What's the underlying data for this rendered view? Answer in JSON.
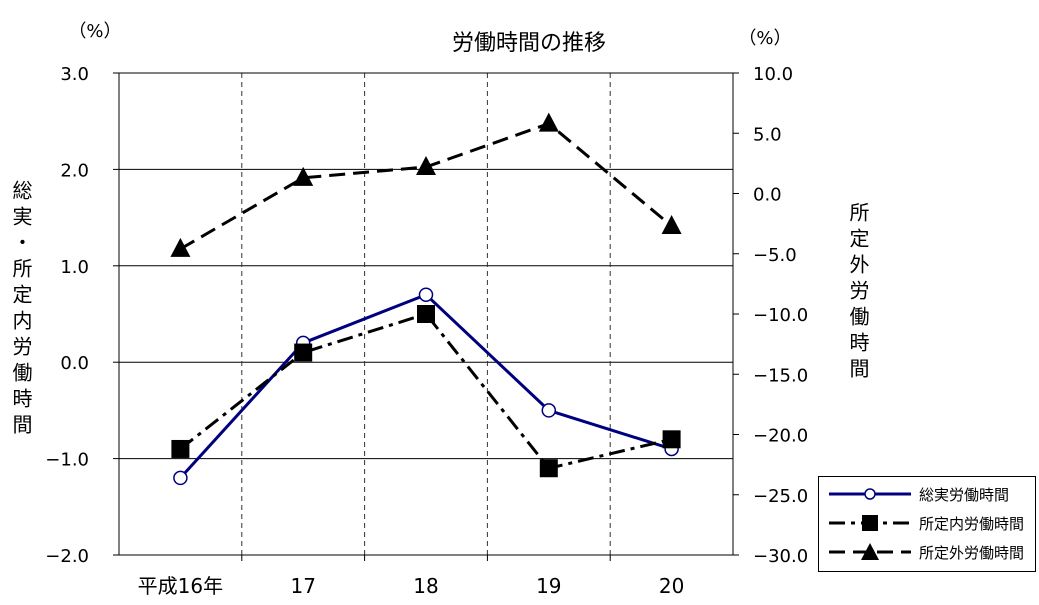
{
  "chart_data": {
    "type": "line",
    "title": "労働時間の推移",
    "left_unit": "（%）",
    "right_unit": "（%）",
    "left_axis_label": "総実・所定内労働時間",
    "right_axis_label": "所定外労働時間",
    "categories": [
      "平成16年",
      "17",
      "18",
      "19",
      "20"
    ],
    "left_ylim": [
      -2.0,
      3.0
    ],
    "left_ticks": [
      "3.0",
      "2.0",
      "1.0",
      "0.0",
      "-1.0",
      "-2.0"
    ],
    "right_ylim": [
      -30.0,
      10.0
    ],
    "right_ticks": [
      "10.0",
      "5.0",
      "0.0",
      "-5.0",
      "-10.0",
      "-15.0",
      "-20.0",
      "-25.0",
      "-30.0"
    ],
    "series": [
      {
        "name": "総実労働時間",
        "axis": "left",
        "values": [
          -1.2,
          0.2,
          0.7,
          -0.5,
          -0.9
        ],
        "color": "#00007f",
        "marker": "circle",
        "dash": "solid"
      },
      {
        "name": "所定内労働時間",
        "axis": "left",
        "values": [
          -0.9,
          0.1,
          0.5,
          -1.1,
          -0.8
        ],
        "color": "#000000",
        "marker": "square",
        "dash": "dashdot"
      },
      {
        "name": "所定外労働時間",
        "axis": "right",
        "values": [
          -4.6,
          1.3,
          2.2,
          5.8,
          -2.7
        ],
        "color": "#000000",
        "marker": "triangle",
        "dash": "dash"
      }
    ]
  }
}
